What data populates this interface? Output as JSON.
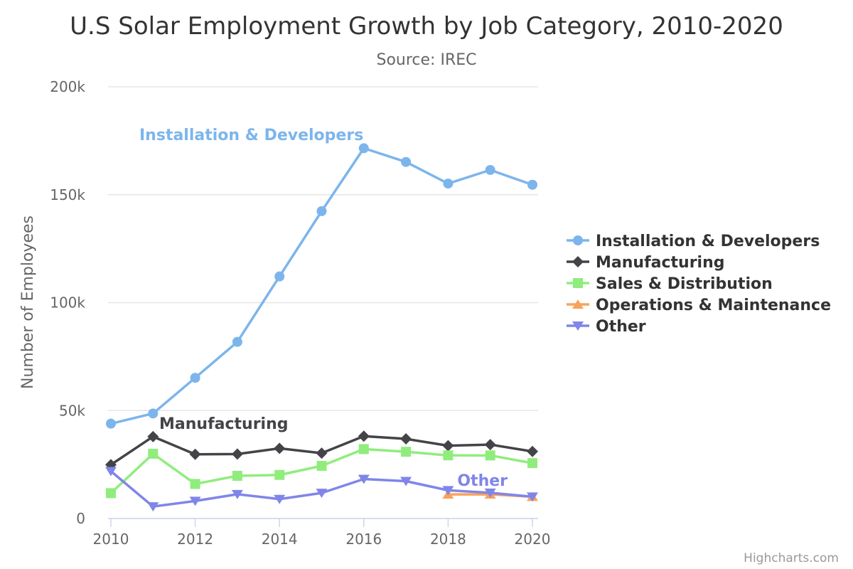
{
  "chart_data": {
    "type": "line",
    "title": "U.S Solar Employment Growth by Job Category, 2010-2020",
    "subtitle": "Source: IREC",
    "ylabel": "Number of Employees",
    "xlabel": "",
    "x": [
      2010,
      2011,
      2012,
      2013,
      2014,
      2015,
      2016,
      2017,
      2018,
      2019,
      2020
    ],
    "x_ticks": [
      "2010",
      "2012",
      "2014",
      "2016",
      "2018",
      "2020"
    ],
    "y_ticks": [
      "0",
      "50k",
      "100k",
      "150k",
      "200k"
    ],
    "ylim": [
      0,
      200000
    ],
    "grid": true,
    "legend_position": "right",
    "series": [
      {
        "name": "Installation & Developers",
        "color": "#7cb5ec",
        "marker": "circle",
        "values": [
          43934,
          48656,
          65165,
          81827,
          112143,
          142383,
          171533,
          165174,
          155157,
          161454,
          154610
        ],
        "label": "Installation & Developers"
      },
      {
        "name": "Manufacturing",
        "color": "#434348",
        "marker": "diamond",
        "values": [
          24916,
          37941,
          29742,
          29851,
          32490,
          30282,
          38121,
          36885,
          33726,
          34243,
          31050
        ],
        "label": "Manufacturing"
      },
      {
        "name": "Sales & Distribution",
        "color": "#90ed7d",
        "marker": "square",
        "values": [
          11744,
          30000,
          16005,
          19771,
          20185,
          24377,
          32147,
          30912,
          29243,
          29213,
          25663
        ],
        "label": ""
      },
      {
        "name": "Operations & Maintenance",
        "color": "#f7a35c",
        "marker": "triangle",
        "values": [
          null,
          null,
          null,
          null,
          null,
          null,
          null,
          null,
          11164,
          11218,
          10077
        ],
        "label": ""
      },
      {
        "name": "Other",
        "color": "#8085e9",
        "marker": "triangle-down",
        "values": [
          21908,
          5548,
          8105,
          11248,
          8989,
          11816,
          18274,
          17300,
          13053,
          11906,
          10073
        ],
        "label": "Other"
      }
    ]
  },
  "credits": "Highcharts.com"
}
